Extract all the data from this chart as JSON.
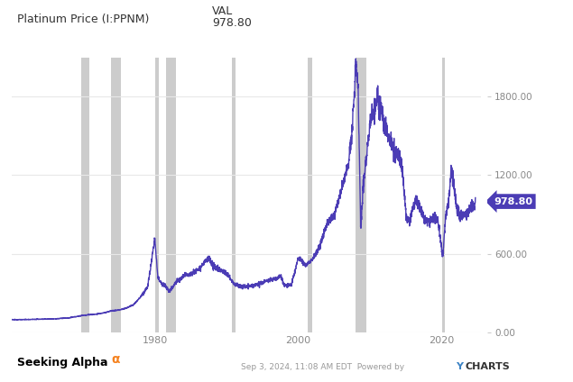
{
  "title_label": "VAL",
  "series_label": "Platinum Price (I:PPNM)",
  "current_val": "978.80",
  "line_color": "#4b3cb5",
  "bg_color": "#ffffff",
  "plot_bg_color": "#ffffff",
  "chart_outer_bg": "#f0f0f0",
  "recession_color": "#cccccc",
  "label_box_color": "#4b3cb5",
  "ylabel_values": [
    "0.00",
    "600.00",
    "1200.00",
    "1800.00"
  ],
  "yticks": [
    0,
    600,
    1200,
    1800
  ],
  "xlim_start": 1960,
  "xlim_end": 2025.5,
  "ylim": [
    0,
    2100
  ],
  "recession_periods": [
    [
      1969.75,
      1970.83
    ],
    [
      1973.92,
      1975.25
    ],
    [
      1980.0,
      1980.5
    ],
    [
      1981.5,
      1982.92
    ],
    [
      1990.67,
      1991.25
    ],
    [
      2001.25,
      2001.92
    ],
    [
      2007.92,
      2009.5
    ],
    [
      2020.08,
      2020.42
    ]
  ],
  "xticks": [
    1980,
    2000,
    2020
  ],
  "grid_color": "#e8e8e8",
  "anchors_years": [
    1960,
    1962,
    1964,
    1966,
    1968,
    1970,
    1971,
    1972,
    1973,
    1974,
    1975,
    1976,
    1977,
    1978,
    1979,
    1980.0,
    1980.4,
    1981,
    1981.5,
    1982,
    1983,
    1983.5,
    1984,
    1985,
    1986,
    1987,
    1987.5,
    1988,
    1989,
    1990,
    1991,
    1992,
    1993,
    1994,
    1995,
    1996,
    1997,
    1997.5,
    1998,
    1999,
    2000,
    2001,
    2002,
    2003,
    2004,
    2005,
    2006,
    2007,
    2007.5,
    2008.0,
    2008.3,
    2008.7,
    2009.0,
    2009.5,
    2010,
    2010.5,
    2011.0,
    2011.5,
    2012,
    2012.5,
    2013,
    2013.5,
    2014,
    2014.5,
    2015,
    2015.5,
    2016,
    2016.5,
    2017,
    2017.5,
    2018,
    2018.5,
    2019,
    2019.5,
    2020.1,
    2020.5,
    2021.0,
    2021.3,
    2021.7,
    2022.0,
    2022.5,
    2023.0,
    2023.5,
    2024.0,
    2024.5,
    2024.67
  ],
  "anchors_prices": [
    97,
    98,
    100,
    103,
    110,
    130,
    135,
    140,
    150,
    165,
    170,
    185,
    210,
    270,
    350,
    720,
    420,
    370,
    350,
    310,
    390,
    400,
    430,
    450,
    480,
    540,
    560,
    510,
    480,
    450,
    370,
    350,
    350,
    360,
    380,
    400,
    410,
    435,
    360,
    360,
    570,
    510,
    560,
    660,
    840,
    900,
    1090,
    1300,
    1550,
    2020,
    1900,
    780,
    1100,
    1350,
    1590,
    1710,
    1790,
    1680,
    1580,
    1510,
    1440,
    1370,
    1340,
    1240,
    900,
    840,
    980,
    1000,
    945,
    870,
    845,
    840,
    880,
    840,
    570,
    870,
    1020,
    1250,
    1100,
    975,
    880,
    900,
    910,
    950,
    960,
    978.8
  ]
}
